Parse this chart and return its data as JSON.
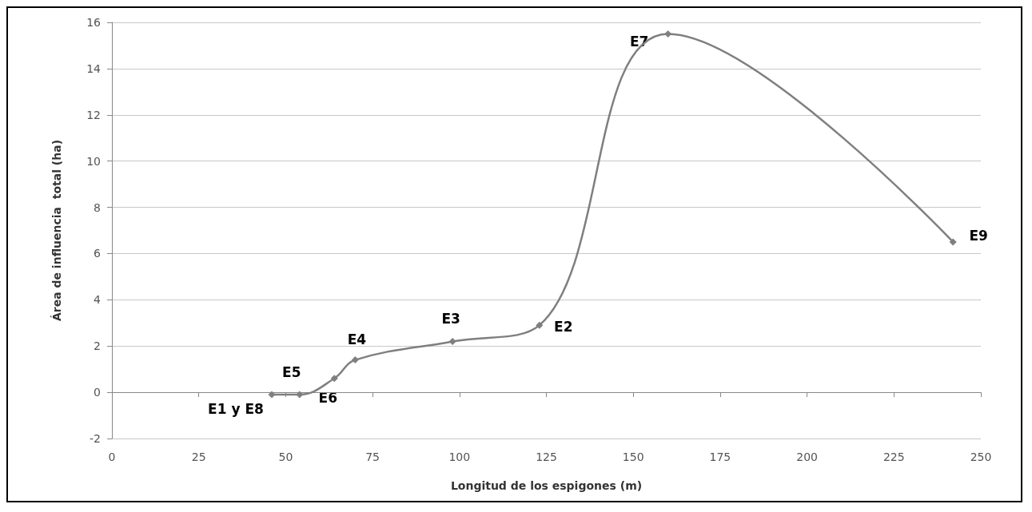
{
  "chart_data": {
    "type": "line",
    "xlabel": "Longitud de los espigones (m)",
    "ylabel": "Área de influencia  total (ha)",
    "x": [
      46,
      54,
      64,
      70,
      98,
      123,
      160,
      242
    ],
    "series": [
      {
        "color": "#7f7f7f",
        "values": [
          -0.1,
          -0.1,
          0.6,
          1.4,
          2.2,
          2.9,
          15.5,
          6.5
        ]
      }
    ],
    "xlim": [
      0,
      250
    ],
    "xticks": [
      0,
      25,
      50,
      75,
      100,
      125,
      150,
      175,
      200,
      225,
      250
    ],
    "ylim": [
      -2,
      16
    ],
    "yticks": [
      -2,
      0,
      2,
      4,
      6,
      8,
      10,
      12,
      14,
      16
    ],
    "grid": "y",
    "marker": "diamond",
    "line_style": "solid",
    "annotations": [
      {
        "text": "E1 y E8",
        "x": 46,
        "y": -0.1
      },
      {
        "text": "E5",
        "x": 54,
        "y": -0.1
      },
      {
        "text": "E6",
        "x": 64,
        "y": 0.6
      },
      {
        "text": "E4",
        "x": 70,
        "y": 1.4
      },
      {
        "text": "E3",
        "x": 98,
        "y": 2.2
      },
      {
        "text": "E2",
        "x": 123,
        "y": 2.9
      },
      {
        "text": "E7",
        "x": 160,
        "y": 15.5
      },
      {
        "text": "E9",
        "x": 242,
        "y": 6.5
      }
    ]
  }
}
